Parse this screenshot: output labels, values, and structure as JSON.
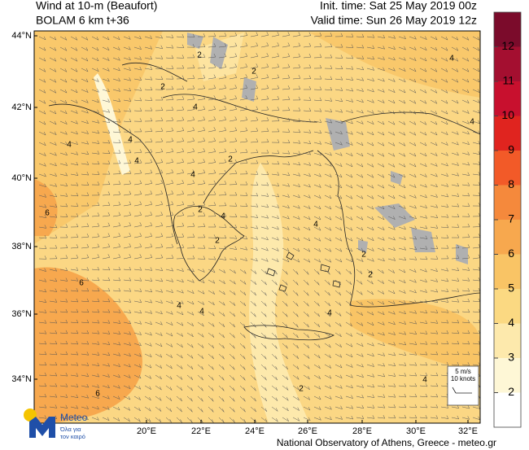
{
  "header": {
    "title_line1": "Wind at 10-m (Beaufort)",
    "title_line2": "BOLAM 6 km t+36",
    "init_time": "Init. time: Sat 25 May 2019 00z",
    "valid_time": "Valid time: Sun 26 May 2019 12z"
  },
  "map": {
    "lat_labels": [
      "44°N",
      "42°N",
      "40°N",
      "38°N",
      "36°N",
      "34°N"
    ],
    "lon_labels": [
      "20°E",
      "22°E",
      "24°E",
      "26°E",
      "28°E",
      "30°E",
      "32°E"
    ],
    "contour_labels": [
      "2",
      "4",
      "2",
      "2",
      "4",
      "4",
      "4",
      "4",
      "4",
      "4",
      "2",
      "6",
      "2",
      "4",
      "2",
      "4",
      "2",
      "6",
      "4",
      "4",
      "4",
      "2",
      "4",
      "2",
      "6"
    ]
  },
  "colorbar": {
    "levels": [
      12,
      11,
      10,
      9,
      8,
      7,
      6,
      5,
      4,
      3,
      2
    ],
    "colors": [
      "#7b0b2b",
      "#a40f30",
      "#c8102e",
      "#e0241f",
      "#f25a28",
      "#f5893c",
      "#f7a84e",
      "#f9c465",
      "#fbd982",
      "#fde9ac",
      "#fef7d6",
      "#ffffff"
    ]
  },
  "wind_key": {
    "speed": "5 m/s",
    "knots": "10 knots"
  },
  "logo": {
    "name": "Meteo",
    "tagline_line1": "Όλα για",
    "tagline_line2": "τον καιρό"
  },
  "footer": "National Observatory of Athens, Greece - meteo.gr"
}
